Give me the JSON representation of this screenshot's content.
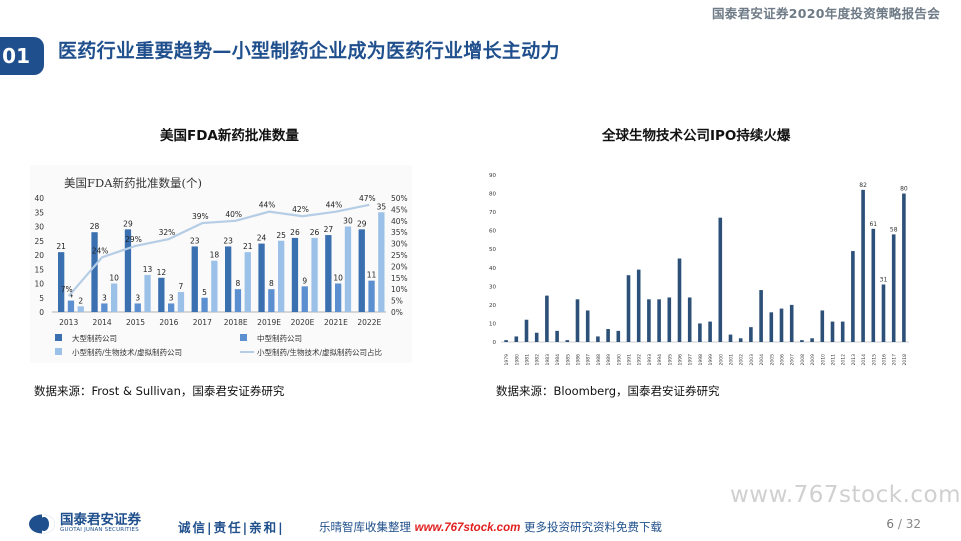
{
  "header": {
    "report_title": "国泰君安证券2020年度投资策略报告会",
    "section_number": "01",
    "slide_title": "医药行业重要趋势—小型制药企业成为医药行业增长主动力"
  },
  "left_panel": {
    "heading": "美国FDA新药批准数量",
    "source": "数据来源：Frost & Sullivan，国泰君安证券研究"
  },
  "right_panel": {
    "heading": "全球生物技术公司IPO持续火爆",
    "source": "数据来源：Bloomberg，国泰君安证券研究"
  },
  "watermark": "www.767stock.com",
  "footer": {
    "brand_cn": "国泰君安证券",
    "brand_en": "GUOTAI JUNAN SECURITIES",
    "motto": "诚信|责任|亲和|",
    "ad_prefix": "乐晴智库收集整理",
    "ad_url": "www.767stock.com",
    "ad_suffix": "更多投资研究资料免费下载",
    "page_current": "6",
    "page_sep": "/",
    "page_total": "32"
  },
  "chart_data": [
    {
      "type": "bar",
      "title": "美国FDA新药批准数量(个)",
      "categories": [
        "2013",
        "2014",
        "2015",
        "2016",
        "2017",
        "2018E",
        "2019E",
        "2020E",
        "2021E",
        "2022E"
      ],
      "series": [
        {
          "name": "大型制药公司",
          "color": "#3a6fb0",
          "values": [
            21,
            28,
            29,
            12,
            23,
            23,
            24,
            26,
            27,
            29
          ]
        },
        {
          "name": "中型制药公司",
          "color": "#5b8fd0",
          "values": [
            4,
            3,
            3,
            3,
            5,
            8,
            8,
            9,
            10,
            11
          ]
        },
        {
          "name": "小型制药/生物技术/虚拟制药公司",
          "color": "#9cc1e8",
          "values": [
            2,
            10,
            13,
            7,
            18,
            21,
            25,
            26,
            30,
            35
          ]
        },
        {
          "name": "小型制药/生物技术/虚拟制药公司占比",
          "type": "line",
          "color": "#b6cde6",
          "axis": "right",
          "values": [
            7,
            24,
            29,
            32,
            39,
            40,
            44,
            42,
            44,
            47
          ],
          "labels": [
            "7%",
            "24%",
            "29%",
            "32%",
            "39%",
            "40%",
            "44%",
            "42%",
            "44%",
            "47%"
          ]
        }
      ],
      "ylim": [
        0,
        40
      ],
      "yticks": [
        0,
        5,
        10,
        15,
        20,
        25,
        30,
        35,
        40
      ],
      "y2lim": [
        0,
        50
      ],
      "y2ticks": [
        "0%",
        "5%",
        "10%",
        "15%",
        "20%",
        "25%",
        "30%",
        "35%",
        "40%",
        "45%",
        "50%"
      ],
      "legend_position": "bottom"
    },
    {
      "type": "bar",
      "categories": [
        "1979",
        "1980",
        "1981",
        "1982",
        "1983",
        "1984",
        "1985",
        "1986",
        "1987",
        "1988",
        "1989",
        "1990",
        "1991",
        "1992",
        "1993",
        "1994",
        "1995",
        "1996",
        "1997",
        "1998",
        "1999",
        "2000",
        "2001",
        "2002",
        "2003",
        "2004",
        "2005",
        "2006",
        "2007",
        "2008",
        "2009",
        "2010",
        "2011",
        "2012",
        "2013",
        "2014",
        "2015",
        "2016",
        "2017",
        "2018"
      ],
      "values": [
        1,
        3,
        12,
        5,
        25,
        6,
        1,
        23,
        17,
        3,
        7,
        6,
        36,
        39,
        23,
        23,
        24,
        45,
        24,
        10,
        11,
        67,
        4,
        2,
        8,
        28,
        16,
        18,
        20,
        1,
        2,
        17,
        11,
        11,
        49,
        82,
        61,
        31,
        58,
        80
      ],
      "labeled_values": {
        "2014": "82",
        "2015": "61",
        "2016": "31",
        "2017": "58",
        "2018": "80"
      },
      "color": "#2c5078",
      "ylim": [
        0,
        90
      ],
      "yticks": [
        0,
        10,
        20,
        30,
        40,
        50,
        60,
        70,
        80,
        90
      ]
    }
  ]
}
